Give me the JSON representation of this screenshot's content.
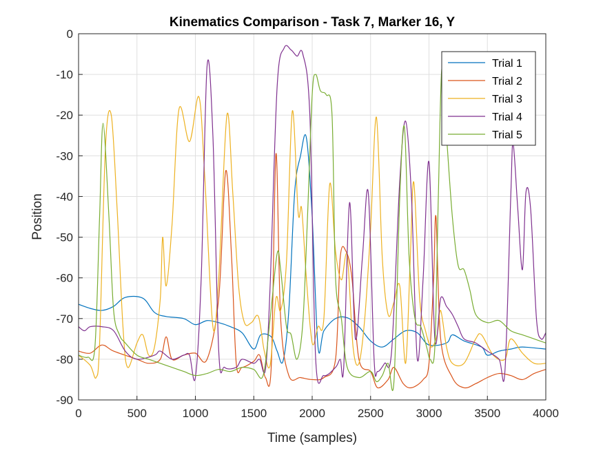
{
  "chart_data": {
    "type": "line",
    "title": "Kinematics Comparison - Task 7, Marker 16, Y",
    "xlabel": "Time (samples)",
    "ylabel": "Position",
    "xlim": [
      0,
      4000
    ],
    "ylim": [
      -90,
      0
    ],
    "xticks": [
      0,
      500,
      1000,
      1500,
      2000,
      2500,
      3000,
      3500,
      4000
    ],
    "yticks": [
      0,
      -10,
      -20,
      -30,
      -40,
      -50,
      -60,
      -70,
      -80,
      -90
    ],
    "grid": true,
    "legend_position": "top-right",
    "series": [
      {
        "name": "Trial 1",
        "color": "#0072BD",
        "points": [
          [
            0,
            -66.5
          ],
          [
            100,
            -67.5
          ],
          [
            200,
            -68
          ],
          [
            300,
            -67
          ],
          [
            400,
            -64.8
          ],
          [
            550,
            -65
          ],
          [
            650,
            -68.5
          ],
          [
            750,
            -69.5
          ],
          [
            900,
            -70
          ],
          [
            1000,
            -71.5
          ],
          [
            1100,
            -70.5
          ],
          [
            1200,
            -71
          ],
          [
            1300,
            -72
          ],
          [
            1400,
            -73.5
          ],
          [
            1500,
            -77.5
          ],
          [
            1560,
            -74
          ],
          [
            1650,
            -74.5
          ],
          [
            1700,
            -78
          ],
          [
            1750,
            -80.5
          ],
          [
            1800,
            -68
          ],
          [
            1850,
            -39
          ],
          [
            1900,
            -30
          ],
          [
            1950,
            -25.5
          ],
          [
            2000,
            -45
          ],
          [
            2050,
            -77
          ],
          [
            2100,
            -73
          ],
          [
            2200,
            -70
          ],
          [
            2300,
            -69.8
          ],
          [
            2400,
            -72
          ],
          [
            2500,
            -75.5
          ],
          [
            2600,
            -77
          ],
          [
            2700,
            -75
          ],
          [
            2800,
            -73
          ],
          [
            2900,
            -73.5
          ],
          [
            3000,
            -76.5
          ],
          [
            3150,
            -76
          ],
          [
            3200,
            -74
          ],
          [
            3300,
            -75.5
          ],
          [
            3450,
            -77
          ],
          [
            3500,
            -79
          ],
          [
            3600,
            -78
          ],
          [
            3700,
            -77.5
          ],
          [
            3800,
            -77
          ],
          [
            4000,
            -77.5
          ]
        ]
      },
      {
        "name": "Trial 2",
        "color": "#D95319",
        "points": [
          [
            0,
            -78
          ],
          [
            100,
            -78.5
          ],
          [
            200,
            -76.5
          ],
          [
            300,
            -78
          ],
          [
            500,
            -80
          ],
          [
            600,
            -81
          ],
          [
            700,
            -80
          ],
          [
            750,
            -74.5
          ],
          [
            800,
            -80
          ],
          [
            900,
            -79
          ],
          [
            1000,
            -78.5
          ],
          [
            1100,
            -80
          ],
          [
            1200,
            -65
          ],
          [
            1260,
            -33.7
          ],
          [
            1310,
            -55
          ],
          [
            1350,
            -81
          ],
          [
            1400,
            -82
          ],
          [
            1500,
            -80.5
          ],
          [
            1550,
            -79
          ],
          [
            1600,
            -84.5
          ],
          [
            1650,
            -81.5
          ],
          [
            1690,
            -29.5
          ],
          [
            1730,
            -70
          ],
          [
            1800,
            -84
          ],
          [
            1900,
            -84.5
          ],
          [
            2000,
            -85
          ],
          [
            2100,
            -84.5
          ],
          [
            2200,
            -80
          ],
          [
            2240,
            -55
          ],
          [
            2290,
            -53.5
          ],
          [
            2340,
            -60
          ],
          [
            2400,
            -80
          ],
          [
            2500,
            -83
          ],
          [
            2560,
            -87
          ],
          [
            2650,
            -85
          ],
          [
            2700,
            -82
          ],
          [
            2780,
            -86
          ],
          [
            2850,
            -87
          ],
          [
            2950,
            -85
          ],
          [
            3000,
            -81
          ],
          [
            3040,
            -60
          ],
          [
            3060,
            -45
          ],
          [
            3100,
            -75
          ],
          [
            3200,
            -84.5
          ],
          [
            3300,
            -87
          ],
          [
            3400,
            -86
          ],
          [
            3500,
            -84.5
          ],
          [
            3600,
            -83.5
          ],
          [
            3700,
            -84
          ],
          [
            3800,
            -85
          ],
          [
            3900,
            -83.5
          ],
          [
            4000,
            -82.5
          ]
        ]
      },
      {
        "name": "Trial 3",
        "color": "#EDB120",
        "points": [
          [
            0,
            -79
          ],
          [
            100,
            -81.5
          ],
          [
            150,
            -84.5
          ],
          [
            180,
            -76
          ],
          [
            230,
            -28
          ],
          [
            280,
            -20
          ],
          [
            330,
            -43
          ],
          [
            380,
            -72
          ],
          [
            420,
            -82
          ],
          [
            500,
            -76
          ],
          [
            550,
            -74
          ],
          [
            600,
            -79
          ],
          [
            650,
            -77
          ],
          [
            700,
            -65
          ],
          [
            720,
            -50
          ],
          [
            750,
            -62
          ],
          [
            800,
            -47
          ],
          [
            860,
            -18.5
          ],
          [
            950,
            -26.5
          ],
          [
            1030,
            -15.5
          ],
          [
            1080,
            -35
          ],
          [
            1150,
            -72
          ],
          [
            1200,
            -60
          ],
          [
            1270,
            -20
          ],
          [
            1320,
            -39
          ],
          [
            1370,
            -62
          ],
          [
            1420,
            -71
          ],
          [
            1480,
            -71
          ],
          [
            1540,
            -69.5
          ],
          [
            1590,
            -78
          ],
          [
            1640,
            -81.5
          ],
          [
            1690,
            -65
          ],
          [
            1730,
            -68
          ],
          [
            1780,
            -56
          ],
          [
            1830,
            -19
          ],
          [
            1880,
            -44
          ],
          [
            1910,
            -43
          ],
          [
            1950,
            -60
          ],
          [
            2000,
            -76
          ],
          [
            2050,
            -72
          ],
          [
            2100,
            -70
          ],
          [
            2150,
            -37
          ],
          [
            2200,
            -53.5
          ],
          [
            2250,
            -60.5
          ],
          [
            2300,
            -54.5
          ],
          [
            2350,
            -77
          ],
          [
            2400,
            -81
          ],
          [
            2450,
            -70
          ],
          [
            2500,
            -48
          ],
          [
            2550,
            -20.5
          ],
          [
            2600,
            -55
          ],
          [
            2650,
            -69
          ],
          [
            2700,
            -66
          ],
          [
            2750,
            -62
          ],
          [
            2800,
            -81
          ],
          [
            2840,
            -55
          ],
          [
            2870,
            -36.5
          ],
          [
            2920,
            -65
          ],
          [
            2970,
            -73
          ],
          [
            3020,
            -77
          ],
          [
            3070,
            -74
          ],
          [
            3100,
            -68
          ],
          [
            3150,
            -77
          ],
          [
            3200,
            -81
          ],
          [
            3300,
            -81
          ],
          [
            3400,
            -75
          ],
          [
            3450,
            -74
          ],
          [
            3550,
            -79
          ],
          [
            3650,
            -80
          ],
          [
            3700,
            -75
          ],
          [
            3800,
            -78.5
          ],
          [
            3900,
            -81
          ],
          [
            4000,
            -81
          ]
        ]
      },
      {
        "name": "Trial 4",
        "color": "#7E2F8E",
        "points": [
          [
            0,
            -72
          ],
          [
            50,
            -73
          ],
          [
            100,
            -72
          ],
          [
            200,
            -72
          ],
          [
            300,
            -73
          ],
          [
            400,
            -78
          ],
          [
            500,
            -80
          ],
          [
            650,
            -79
          ],
          [
            700,
            -78
          ],
          [
            800,
            -80
          ],
          [
            900,
            -79
          ],
          [
            950,
            -79
          ],
          [
            1000,
            -84.5
          ],
          [
            1050,
            -60
          ],
          [
            1100,
            -8
          ],
          [
            1150,
            -25
          ],
          [
            1200,
            -78
          ],
          [
            1250,
            -82
          ],
          [
            1350,
            -82
          ],
          [
            1400,
            -80
          ],
          [
            1500,
            -81
          ],
          [
            1550,
            -80
          ],
          [
            1600,
            -82.5
          ],
          [
            1640,
            -62
          ],
          [
            1700,
            -13
          ],
          [
            1760,
            -3.5
          ],
          [
            1820,
            -4
          ],
          [
            1870,
            -5.5
          ],
          [
            1920,
            -5
          ],
          [
            1980,
            -20
          ],
          [
            2030,
            -80
          ],
          [
            2100,
            -84
          ],
          [
            2200,
            -82
          ],
          [
            2240,
            -80
          ],
          [
            2270,
            -82
          ],
          [
            2320,
            -41.5
          ],
          [
            2370,
            -75
          ],
          [
            2430,
            -55
          ],
          [
            2480,
            -39
          ],
          [
            2530,
            -80
          ],
          [
            2560,
            -83
          ],
          [
            2620,
            -81
          ],
          [
            2680,
            -78
          ],
          [
            2750,
            -36
          ],
          [
            2800,
            -21.5
          ],
          [
            2850,
            -40
          ],
          [
            2900,
            -80
          ],
          [
            2950,
            -60
          ],
          [
            3000,
            -31.5
          ],
          [
            3050,
            -75
          ],
          [
            3100,
            -65
          ],
          [
            3150,
            -67
          ],
          [
            3200,
            -69
          ],
          [
            3250,
            -72
          ],
          [
            3300,
            -75
          ],
          [
            3400,
            -76
          ],
          [
            3500,
            -78
          ],
          [
            3600,
            -80
          ],
          [
            3650,
            -83
          ],
          [
            3700,
            -40
          ],
          [
            3720,
            -27
          ],
          [
            3760,
            -43
          ],
          [
            3800,
            -58
          ],
          [
            3830,
            -39
          ],
          [
            3870,
            -43
          ],
          [
            3920,
            -70
          ],
          [
            3960,
            -75
          ],
          [
            4000,
            -73.5
          ]
        ]
      },
      {
        "name": "Trial 5",
        "color": "#77AC30",
        "points": [
          [
            0,
            -79
          ],
          [
            80,
            -79.5
          ],
          [
            140,
            -77
          ],
          [
            180,
            -45
          ],
          [
            210,
            -22
          ],
          [
            260,
            -45
          ],
          [
            300,
            -68
          ],
          [
            350,
            -74
          ],
          [
            400,
            -76
          ],
          [
            500,
            -79
          ],
          [
            600,
            -80
          ],
          [
            700,
            -81
          ],
          [
            800,
            -82
          ],
          [
            900,
            -83
          ],
          [
            1000,
            -84
          ],
          [
            1100,
            -83.5
          ],
          [
            1200,
            -82.5
          ],
          [
            1300,
            -83
          ],
          [
            1400,
            -82
          ],
          [
            1500,
            -82.5
          ],
          [
            1580,
            -84
          ],
          [
            1640,
            -70
          ],
          [
            1700,
            -54
          ],
          [
            1730,
            -58
          ],
          [
            1780,
            -72
          ],
          [
            1820,
            -74
          ],
          [
            1870,
            -80
          ],
          [
            1920,
            -71
          ],
          [
            1960,
            -45
          ],
          [
            2000,
            -15
          ],
          [
            2030,
            -10
          ],
          [
            2070,
            -14
          ],
          [
            2120,
            -15
          ],
          [
            2170,
            -20
          ],
          [
            2200,
            -60
          ],
          [
            2250,
            -70
          ],
          [
            2300,
            -82
          ],
          [
            2400,
            -84.5
          ],
          [
            2500,
            -83
          ],
          [
            2550,
            -85.5
          ],
          [
            2600,
            -84
          ],
          [
            2650,
            -81
          ],
          [
            2700,
            -85.5
          ],
          [
            2750,
            -40
          ],
          [
            2790,
            -23
          ],
          [
            2830,
            -55
          ],
          [
            2880,
            -70
          ],
          [
            2930,
            -72
          ],
          [
            2980,
            -77
          ],
          [
            3010,
            -80
          ],
          [
            3050,
            -77
          ],
          [
            3080,
            -40
          ],
          [
            3110,
            -8.5
          ],
          [
            3150,
            -25
          ],
          [
            3200,
            -45
          ],
          [
            3250,
            -57
          ],
          [
            3300,
            -58
          ],
          [
            3350,
            -63
          ],
          [
            3400,
            -69
          ],
          [
            3500,
            -71
          ],
          [
            3600,
            -70.5
          ],
          [
            3700,
            -73
          ],
          [
            3800,
            -74
          ],
          [
            3900,
            -75
          ],
          [
            4000,
            -76
          ]
        ]
      }
    ]
  }
}
